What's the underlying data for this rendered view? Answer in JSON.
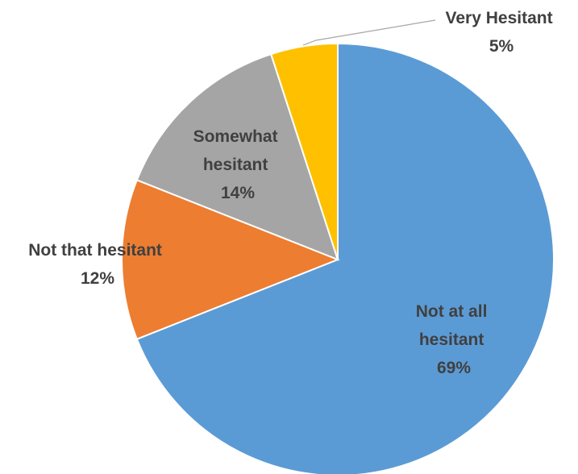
{
  "chart_data": {
    "type": "pie",
    "title": "",
    "slices": [
      {
        "name": "Not at all hesitant",
        "label_lines": [
          "Not at all",
          "hesitant"
        ],
        "value_label": "69%",
        "value": 69,
        "color": "#5b9bd5"
      },
      {
        "name": "Not that hesitant",
        "label_lines": [
          "Not that hesitant"
        ],
        "value_label": "12%",
        "value": 12,
        "color": "#ed7d31"
      },
      {
        "name": "Somewhat hesitant",
        "label_lines": [
          "Somewhat",
          "hesitant"
        ],
        "value_label": "14%",
        "value": 14,
        "color": "#a5a5a5"
      },
      {
        "name": "Very Hesitant",
        "label_lines": [
          "Very Hesitant"
        ],
        "value_label": "5%",
        "value": 5,
        "color": "#ffc000"
      }
    ],
    "legend": "none",
    "start_angle": "12 o'clock",
    "direction": "clockwise"
  }
}
